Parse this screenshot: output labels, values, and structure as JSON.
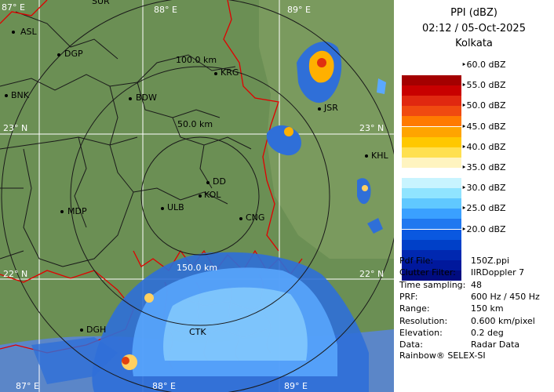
{
  "panel": {
    "product": "PPI (dBZ)",
    "datetime": "02:12 / 05-Oct-2025",
    "station": "Kolkata",
    "legend": [
      {
        "label": "60.0 dBZ",
        "color": "#ffffff"
      },
      {
        "label": "55.0 dBZ",
        "color": "#a00000"
      },
      {
        "label": "50.0 dBZ",
        "color": "#e03010"
      },
      {
        "label": "45.0 dBZ",
        "color": "#ff9a00"
      },
      {
        "label": "40.0 dBZ",
        "color": "#ffe080"
      },
      {
        "label": "35.0 dBZ",
        "color": "#a0ecff"
      },
      {
        "label": "30.0 dBZ",
        "color": "#3aa0ff"
      },
      {
        "label": "25.0 dBZ",
        "color": "#0050d0"
      },
      {
        "label": "20.0 dBZ",
        "color": "#00108c"
      }
    ],
    "swatch_colors": [
      "#a40000",
      "#c80000",
      "#e02810",
      "#f04a10",
      "#ff7a00",
      "#ffa400",
      "#ffc800",
      "#ffe050",
      "#fff4c0",
      "#ffffff",
      "#c8f4ff",
      "#90e4ff",
      "#60c8ff",
      "#3aa0ff",
      "#2078f0",
      "#0a58e0",
      "#0040c8",
      "#0028b0",
      "#00189c",
      "#000c80"
    ],
    "info": [
      {
        "key": "Pdf File:",
        "value": "150Z.ppi"
      },
      {
        "key": "Clutter Filter:",
        "value": "IIRDoppler 7"
      },
      {
        "key": "Time sampling:",
        "value": "48"
      },
      {
        "key": "PRF:",
        "value": "600 Hz / 450 Hz"
      },
      {
        "key": "Range:",
        "value": "150 km"
      },
      {
        "key": "Resolution:",
        "value": "0.600 km/pixel"
      },
      {
        "key": "Elevation:",
        "value": "0.2 deg"
      },
      {
        "key": "Data:",
        "value": "Radar Data"
      }
    ],
    "footer": "Rainbow® SELEX-SI"
  },
  "map": {
    "grid_labels": {
      "lon_88_top": "88° E",
      "lon_89_top": "89° E",
      "lon_87_top": "87° E",
      "lon_87_bottom": "87° E",
      "lon_88_bottom": "88° E",
      "lon_89_bottom": "89° E",
      "lat_23_left": "23° N",
      "lat_23_right": "23° N",
      "lat_22_left": "22° N",
      "lat_22_right": "22° N"
    },
    "range_rings": {
      "r50": "50.0 km",
      "r100": "100.0 km",
      "r150": "150.0 km"
    },
    "places": {
      "ASL": "ASL",
      "DGP": "DGP",
      "BNK": "BNK",
      "BDW": "BDW",
      "KRG": "KRG",
      "MDP": "MDP",
      "DD": "DD",
      "KOL": "KOL",
      "ULB": "ULB",
      "CNG": "CNG",
      "KHL": "KHL",
      "JSR": "JSR",
      "DGH": "DGH",
      "SUR": "SUR",
      "CTK": "CTK"
    }
  }
}
